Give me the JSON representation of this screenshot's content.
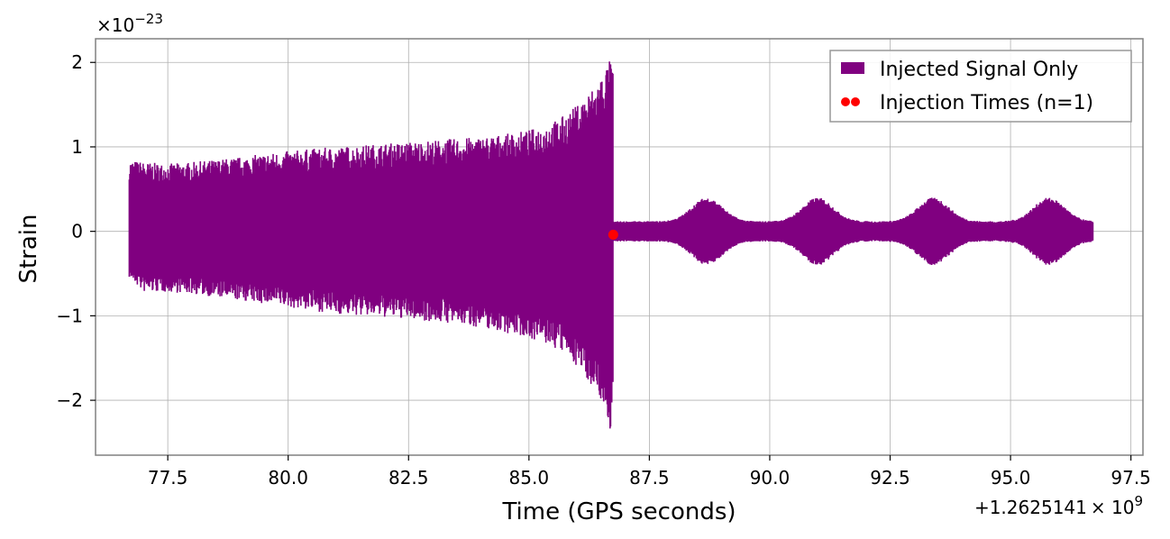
{
  "chart_data": {
    "type": "line",
    "xlabel": "Time (GPS seconds)",
    "ylabel": "Strain",
    "x_offset_label": "+1.2625141",
    "x_offset_base": "× 10",
    "x_offset_exp": "9",
    "y_scale_base": "×10",
    "y_scale_exp": "−23",
    "xlim": [
      76.0,
      97.75
    ],
    "ylim": [
      -2.65,
      2.28
    ],
    "x_ticks": [
      77.5,
      80.0,
      82.5,
      85.0,
      87.5,
      90.0,
      92.5,
      95.0,
      97.5
    ],
    "x_tick_labels": [
      "77.5",
      "80.0",
      "82.5",
      "85.0",
      "87.5",
      "90.0",
      "92.5",
      "95.0",
      "97.5"
    ],
    "y_ticks": [
      -2,
      -1,
      0,
      1,
      2
    ],
    "y_tick_labels": [
      "−2",
      "−1",
      "0",
      "1",
      "2"
    ],
    "grid": true,
    "legend_position": "top-right",
    "series": [
      {
        "name": "Injected Signal Only",
        "kind": "band",
        "color": "#800080",
        "x": [
          76.7,
          77.0,
          77.5,
          78.0,
          78.5,
          79.0,
          79.5,
          80.0,
          80.5,
          81.0,
          81.5,
          82.0,
          82.5,
          83.0,
          83.5,
          84.0,
          84.5,
          85.0,
          85.5,
          85.8,
          86.0,
          86.2,
          86.4,
          86.6,
          86.7,
          86.75
        ],
        "upper": [
          0.85,
          0.82,
          0.8,
          0.82,
          0.85,
          0.88,
          0.92,
          0.95,
          0.98,
          1.0,
          1.02,
          1.04,
          1.06,
          1.08,
          1.1,
          1.12,
          1.15,
          1.2,
          1.3,
          1.4,
          1.5,
          1.62,
          1.75,
          1.95,
          2.05,
          1.9
        ],
        "lower": [
          -0.55,
          -0.72,
          -0.72,
          -0.74,
          -0.78,
          -0.82,
          -0.86,
          -0.9,
          -0.94,
          -0.98,
          -1.0,
          -1.02,
          -1.04,
          -1.07,
          -1.1,
          -1.14,
          -1.2,
          -1.26,
          -1.38,
          -1.48,
          -1.6,
          -1.75,
          -1.9,
          -2.15,
          -2.4,
          -2.0
        ]
      },
      {
        "name": "",
        "kind": "beat_band",
        "color": "#800080",
        "x_start": 86.75,
        "x_end": 96.72,
        "base_amplitude": 0.12,
        "beat_amplitude": 0.28,
        "beat_peaks": [
          88.7,
          91.0,
          93.4,
          95.8
        ],
        "beat_width": 0.75
      },
      {
        "name": "Injection Times (n=1)",
        "kind": "scatter",
        "color": "#ff0000",
        "x": [
          86.75
        ],
        "y": [
          -0.04
        ]
      }
    ]
  }
}
